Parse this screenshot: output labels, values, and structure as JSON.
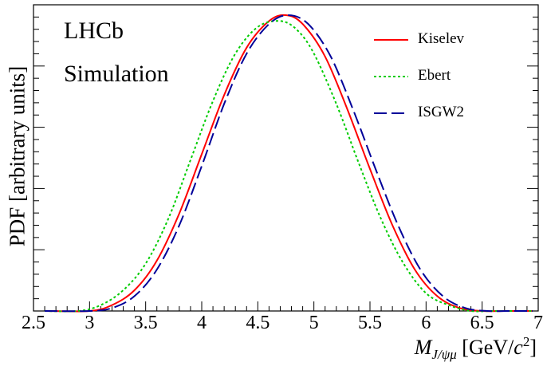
{
  "labels": {
    "experiment": "LHCb",
    "simulation": "Simulation",
    "ylabel": "PDF [arbitrary units]",
    "xlabel_m": "M",
    "xlabel_sub": "J/ψμ",
    "xlabel_unit_pre": " [GeV/",
    "xlabel_unit_c": "c",
    "xlabel_unit_exp": "2",
    "xlabel_unit_post": "]"
  },
  "chart_data": {
    "type": "line",
    "xlim": [
      2.6,
      6.95
    ],
    "ylim": [
      0,
      1.0
    ],
    "x_ticks": [
      "2.5",
      "3",
      "3.5",
      "4",
      "4.5",
      "5",
      "5.5",
      "6",
      "6.5",
      "7"
    ],
    "x_tick_values": [
      2.5,
      3,
      3.5,
      4,
      4.5,
      5,
      5.5,
      6,
      6.5,
      7
    ],
    "legend_position": "top-right",
    "grid": false,
    "series": [
      {
        "name": "Kiselev",
        "color": "#ff0000",
        "dash": "solid",
        "x": [
          2.6,
          3.0,
          3.2,
          3.4,
          3.6,
          3.8,
          4.0,
          4.2,
          4.4,
          4.6,
          4.75,
          4.9,
          5.1,
          5.3,
          5.5,
          5.7,
          5.9,
          6.1,
          6.3,
          6.5,
          6.7,
          6.95
        ],
        "y": [
          0.0,
          0.0,
          0.02,
          0.07,
          0.17,
          0.33,
          0.53,
          0.73,
          0.89,
          0.98,
          1.0,
          0.97,
          0.86,
          0.68,
          0.48,
          0.29,
          0.14,
          0.05,
          0.01,
          0.0,
          0.0,
          0.0
        ]
      },
      {
        "name": "Ebert",
        "color": "#00cc00",
        "dash": "dotted",
        "x": [
          2.6,
          2.9,
          3.1,
          3.3,
          3.5,
          3.7,
          3.9,
          4.1,
          4.3,
          4.5,
          4.7,
          4.85,
          5.0,
          5.2,
          5.4,
          5.6,
          5.8,
          6.0,
          6.2,
          6.4,
          6.6,
          6.95
        ],
        "y": [
          0.0,
          0.0,
          0.02,
          0.07,
          0.16,
          0.31,
          0.51,
          0.71,
          0.87,
          0.96,
          0.98,
          0.95,
          0.87,
          0.7,
          0.5,
          0.31,
          0.16,
          0.06,
          0.02,
          0.0,
          0.0,
          0.0
        ]
      },
      {
        "name": "ISGW2",
        "color": "#000099",
        "dash": "dashed",
        "x": [
          2.6,
          3.0,
          3.2,
          3.4,
          3.6,
          3.8,
          4.0,
          4.2,
          4.4,
          4.6,
          4.77,
          4.95,
          5.15,
          5.35,
          5.55,
          5.75,
          5.95,
          6.15,
          6.35,
          6.55,
          6.75,
          6.95
        ],
        "y": [
          0.0,
          0.0,
          0.01,
          0.05,
          0.14,
          0.29,
          0.49,
          0.7,
          0.87,
          0.97,
          1.0,
          0.97,
          0.86,
          0.68,
          0.48,
          0.29,
          0.14,
          0.05,
          0.01,
          0.0,
          0.0,
          0.0
        ]
      }
    ]
  }
}
